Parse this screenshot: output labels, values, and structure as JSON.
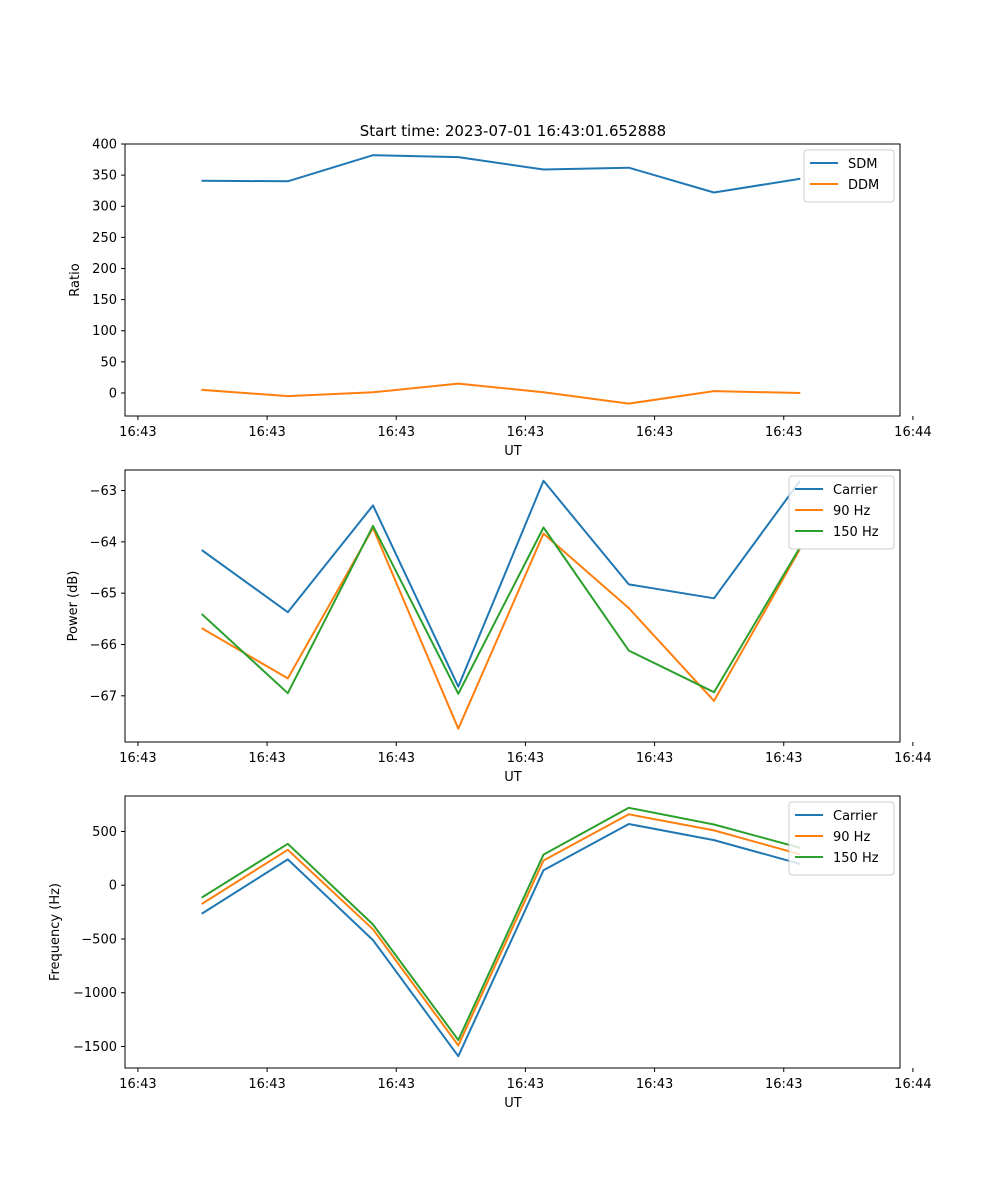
{
  "figure_title": "Start time: 2023-07-01 16:43:01.652888",
  "chart_data": [
    {
      "type": "line",
      "id": "ratio",
      "title": "Start time: 2023-07-01 16:43:01.652888",
      "xlabel": "UT",
      "ylabel": "Ratio",
      "xlim": [
        -0.6,
        5.4
      ],
      "x_ticks": [
        -0.5,
        0.5,
        1.5,
        2.5,
        3.5,
        4.5,
        5.5
      ],
      "x_tick_labels": [
        "16:43",
        "16:43",
        "16:43",
        "16:43",
        "16:43",
        "16:43",
        "16:44"
      ],
      "ylim": [
        -37,
        400
      ],
      "y_ticks": [
        0,
        50,
        100,
        150,
        200,
        250,
        300,
        350,
        400
      ],
      "y_tick_labels": [
        "0",
        "50",
        "100",
        "150",
        "200",
        "250",
        "300",
        "350",
        "400"
      ],
      "x": [
        0,
        0.66,
        1.32,
        1.98,
        2.64,
        3.3,
        3.96,
        4.62
      ],
      "legend_position": "top-right",
      "series": [
        {
          "name": "SDM",
          "color": "#1f77b4",
          "values": [
            341,
            340,
            382,
            379,
            359,
            362,
            322,
            344
          ]
        },
        {
          "name": "DDM",
          "color": "#ff7f0e",
          "values": [
            5,
            -5,
            1,
            15,
            1,
            -17,
            3,
            0
          ]
        }
      ]
    },
    {
      "type": "line",
      "id": "power",
      "title": "",
      "xlabel": "UT",
      "ylabel": "Power (dB)",
      "xlim": [
        -0.6,
        5.4
      ],
      "x_ticks": [
        -0.5,
        0.5,
        1.5,
        2.5,
        3.5,
        4.5,
        5.5
      ],
      "x_tick_labels": [
        "16:43",
        "16:43",
        "16:43",
        "16:43",
        "16:43",
        "16:43",
        "16:44"
      ],
      "ylim": [
        -67.9,
        -62.6
      ],
      "y_ticks": [
        -67,
        -66,
        -65,
        -64,
        -63
      ],
      "y_tick_labels": [
        "−67",
        "−66",
        "−65",
        "−64",
        "−63"
      ],
      "x": [
        0,
        0.66,
        1.32,
        1.98,
        2.64,
        3.3,
        3.96,
        4.62
      ],
      "legend_position": "top-right",
      "series": [
        {
          "name": "Carrier",
          "color": "#1f77b4",
          "values": [
            -64.17,
            -65.37,
            -63.29,
            -66.82,
            -62.81,
            -64.83,
            -65.1,
            -62.83
          ]
        },
        {
          "name": "90 Hz",
          "color": "#ff7f0e",
          "values": [
            -65.69,
            -66.66,
            -63.73,
            -67.64,
            -63.84,
            -65.29,
            -67.1,
            -64.16
          ]
        },
        {
          "name": "150 Hz",
          "color": "#2ca02c",
          "values": [
            -65.42,
            -66.95,
            -63.69,
            -66.96,
            -63.72,
            -66.12,
            -66.93,
            -64.13
          ]
        }
      ]
    },
    {
      "type": "line",
      "id": "frequency",
      "title": "",
      "xlabel": "UT",
      "ylabel": "Frequency (Hz)",
      "xlim": [
        -0.6,
        5.4
      ],
      "x_ticks": [
        -0.5,
        0.5,
        1.5,
        2.5,
        3.5,
        4.5,
        5.5
      ],
      "x_tick_labels": [
        "16:43",
        "16:43",
        "16:43",
        "16:43",
        "16:43",
        "16:43",
        "16:44"
      ],
      "ylim": [
        -1700,
        830
      ],
      "y_ticks": [
        -1500,
        -1000,
        -500,
        0,
        500
      ],
      "y_tick_labels": [
        "−1500",
        "−1000",
        "−500",
        "0",
        "500"
      ],
      "x": [
        0,
        0.66,
        1.32,
        1.98,
        2.64,
        3.3,
        3.96,
        4.62
      ],
      "legend_position": "top-right",
      "series": [
        {
          "name": "Carrier",
          "color": "#1f77b4",
          "values": [
            -260,
            240,
            -510,
            -1590,
            140,
            570,
            420,
            200
          ]
        },
        {
          "name": "90 Hz",
          "color": "#ff7f0e",
          "values": [
            -170,
            330,
            -410,
            -1490,
            230,
            660,
            510,
            290
          ]
        },
        {
          "name": "150 Hz",
          "color": "#2ca02c",
          "values": [
            -110,
            385,
            -365,
            -1440,
            285,
            720,
            565,
            350
          ]
        }
      ]
    }
  ]
}
